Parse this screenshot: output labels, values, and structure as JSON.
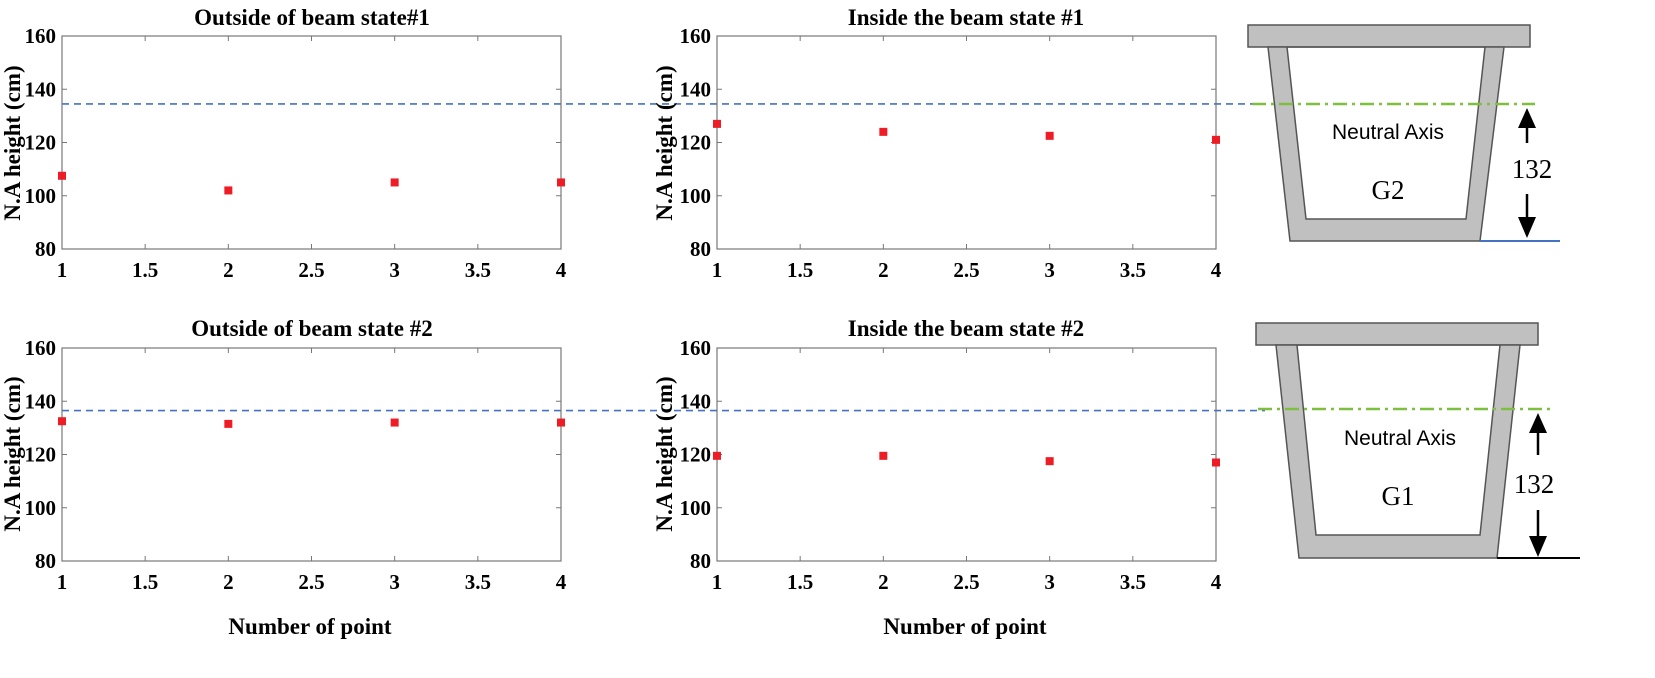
{
  "chart_data": [
    {
      "type": "scatter",
      "title": "Outside of beam  state#1",
      "xlabel": "",
      "ylabel": "N.A height (cm)",
      "xlim": [
        1,
        4
      ],
      "ylim": [
        80,
        160
      ],
      "xticks": [
        "1",
        "1.5",
        "2",
        "2.5",
        "3",
        "3.5",
        "4"
      ],
      "yticks": [
        "80",
        "100",
        "120",
        "140",
        "160"
      ],
      "reference_line": 134.5,
      "x": [
        1,
        2,
        3,
        4
      ],
      "y": [
        107.5,
        102,
        105,
        105
      ],
      "grid": false
    },
    {
      "type": "scatter",
      "title": "Inside the beam state #1",
      "xlabel": "",
      "ylabel": "N.A height (cm)",
      "xlim": [
        1,
        4
      ],
      "ylim": [
        80,
        160
      ],
      "xticks": [
        "1",
        "1.5",
        "2",
        "2.5",
        "3",
        "3.5",
        "4"
      ],
      "yticks": [
        "80",
        "100",
        "120",
        "140",
        "160"
      ],
      "reference_line": 134.5,
      "x": [
        1,
        2,
        3,
        4
      ],
      "y": [
        127,
        124,
        122.5,
        121
      ],
      "grid": false
    },
    {
      "type": "scatter",
      "title": "Outside of beam state #2",
      "xlabel": "Number of point",
      "ylabel": "N.A height (cm)",
      "xlim": [
        1,
        4
      ],
      "ylim": [
        80,
        160
      ],
      "xticks": [
        "1",
        "1.5",
        "2",
        "2.5",
        "3",
        "3.5",
        "4"
      ],
      "yticks": [
        "80",
        "100",
        "120",
        "140",
        "160"
      ],
      "reference_line": 136.5,
      "x": [
        1,
        2,
        3,
        4
      ],
      "y": [
        132.5,
        131.5,
        132,
        132
      ],
      "grid": false
    },
    {
      "type": "scatter",
      "title": "Inside the beam state #2",
      "xlabel": "Number of point",
      "ylabel": "N.A height (cm)",
      "xlim": [
        1,
        4
      ],
      "ylim": [
        80,
        160
      ],
      "xticks": [
        "1",
        "1.5",
        "2",
        "2.5",
        "3",
        "3.5",
        "4"
      ],
      "yticks": [
        "80",
        "100",
        "120",
        "140",
        "160"
      ],
      "reference_line": 136.5,
      "x": [
        1,
        2,
        3,
        4
      ],
      "y": [
        119.5,
        119.5,
        117.5,
        117
      ],
      "grid": false
    }
  ],
  "diagrams": [
    {
      "label": "Neutral Axis",
      "girder": "G2",
      "dimension": "132"
    },
    {
      "label": "Neutral Axis",
      "girder": "G1",
      "dimension": "132"
    }
  ],
  "colors": {
    "marker": "#ee1c25",
    "reference_line": "#4472c4",
    "neutral_axis": "#7fbf3f",
    "section_fill": "#c0c0c0",
    "section_stroke": "#555555"
  }
}
